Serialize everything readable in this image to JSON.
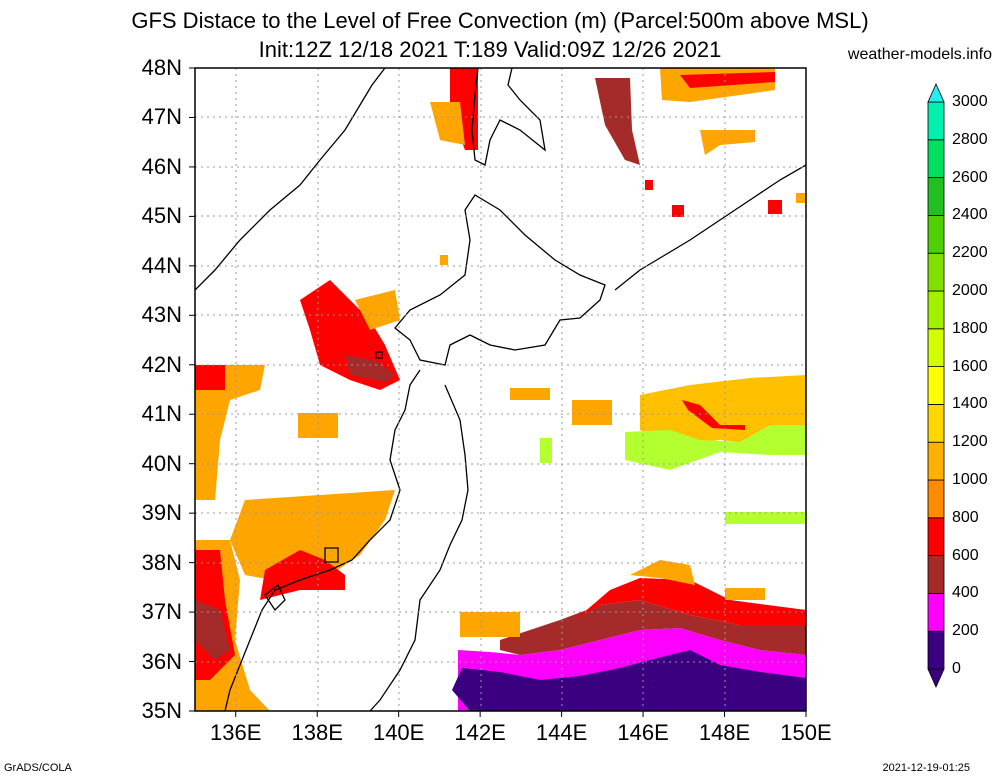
{
  "title": {
    "line1": "GFS Distace to the Level of Free Convection (m) (Parcel:500m above MSL)",
    "line2": "Init:12Z 12/18 2021 T:189 Valid:09Z 12/26 2021",
    "credit": "weather-models.info"
  },
  "axes": {
    "lat_labels": [
      "48N",
      "47N",
      "46N",
      "45N",
      "44N",
      "43N",
      "42N",
      "41N",
      "40N",
      "39N",
      "38N",
      "37N",
      "36N",
      "35N"
    ],
    "lat_values": [
      48,
      47,
      46,
      45,
      44,
      43,
      42,
      41,
      40,
      39,
      38,
      37,
      36,
      35
    ],
    "lon_labels": [
      "136E",
      "138E",
      "140E",
      "142E",
      "144E",
      "146E",
      "148E",
      "150E"
    ],
    "lon_values": [
      136,
      138,
      140,
      142,
      144,
      146,
      148,
      150
    ],
    "lat_range": [
      35,
      48
    ],
    "lon_range": [
      135,
      150
    ],
    "grid": true
  },
  "colorbar": {
    "labels": [
      "0",
      "200",
      "400",
      "600",
      "800",
      "1000",
      "1200",
      "1400",
      "1600",
      "1800",
      "2000",
      "2200",
      "2400",
      "2600",
      "2800",
      "3000"
    ],
    "colors": [
      "#3a0080",
      "#ff00ff",
      "#a52a2a",
      "#ff0000",
      "#ff8c00",
      "#ffb000",
      "#ffd700",
      "#ffff00",
      "#d2ff00",
      "#a0f000",
      "#80e000",
      "#50d000",
      "#20c020",
      "#00e060",
      "#00f0b0",
      "#00e0e0",
      "#20f0f0"
    ],
    "arrow_bottom_color": "#3a0080",
    "arrow_top_color": "#20f0f0"
  },
  "footer": {
    "left": "GrADS/COLA",
    "right": "2021-12-19-01:25"
  }
}
